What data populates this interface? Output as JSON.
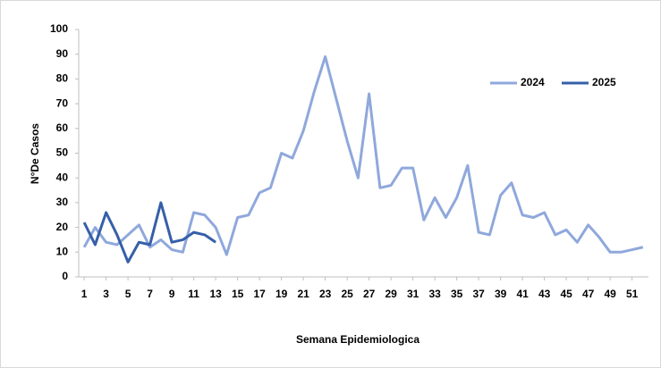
{
  "chart_data": {
    "type": "line",
    "x_label": "Semana Epidemiologica",
    "y_label": "N°De Casos",
    "x": [
      1,
      2,
      3,
      4,
      5,
      6,
      7,
      8,
      9,
      10,
      11,
      12,
      13,
      14,
      15,
      16,
      17,
      18,
      19,
      20,
      21,
      22,
      23,
      24,
      25,
      26,
      27,
      28,
      29,
      30,
      31,
      32,
      33,
      34,
      35,
      36,
      37,
      38,
      39,
      40,
      41,
      42,
      43,
      44,
      45,
      46,
      47,
      48,
      49,
      50,
      51,
      52
    ],
    "series": [
      {
        "name": "2024",
        "color": "#8fa8dc",
        "values": [
          12,
          20,
          14,
          13,
          17,
          21,
          12,
          15,
          11,
          10,
          26,
          25,
          20,
          9,
          24,
          25,
          34,
          36,
          50,
          48,
          59,
          75,
          89,
          72,
          55,
          40,
          74,
          36,
          37,
          44,
          44,
          23,
          32,
          24,
          32,
          45,
          18,
          17,
          33,
          38,
          25,
          24,
          26,
          17,
          19,
          14,
          21,
          16,
          10,
          10,
          11,
          12
        ]
      },
      {
        "name": "2025",
        "color": "#3560a8",
        "values": [
          22,
          13,
          26,
          17,
          6,
          14,
          13,
          30,
          14,
          15,
          18,
          17,
          14,
          null,
          null,
          null,
          null,
          null,
          null,
          null,
          null,
          null,
          null,
          null,
          null,
          null,
          null,
          null,
          null,
          null,
          null,
          null,
          null,
          null,
          null,
          null,
          null,
          null,
          null,
          null,
          null,
          null,
          null,
          null,
          null,
          null,
          null,
          null,
          null,
          null,
          null,
          null
        ]
      }
    ],
    "xlim": [
      0.5,
      52.5
    ],
    "xticks": [
      1,
      3,
      5,
      7,
      9,
      11,
      13,
      15,
      17,
      19,
      21,
      23,
      25,
      27,
      29,
      31,
      33,
      35,
      37,
      39,
      41,
      43,
      45,
      47,
      49,
      51
    ],
    "ylim": [
      0,
      100
    ],
    "yticks": [
      0,
      10,
      20,
      30,
      40,
      50,
      60,
      70,
      80,
      90,
      100
    ],
    "legend": "upper right",
    "grid": false
  }
}
